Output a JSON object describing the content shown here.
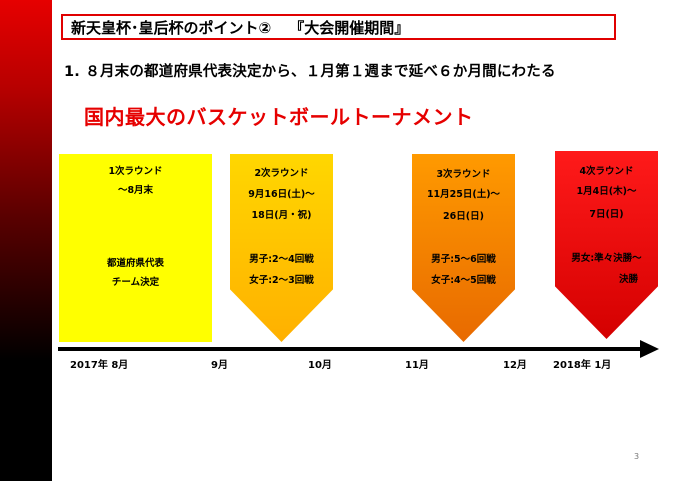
{
  "title": {
    "main": "新天皇杯･皇后杯のポイント②",
    "sub": "『大会開催期間』"
  },
  "point1": "1. ８月末の都道府県代表決定から、１月第１週まで延べ６か月間にわたる",
  "headline": "国内最大のバスケットボールトーナメント",
  "rounds": [
    {
      "name": "1次ラウンド",
      "period": "～8月末",
      "detail1": "都道府県代表",
      "detail2": "チーム決定",
      "color": "#ffff00"
    },
    {
      "name": "2次ラウンド",
      "date1": "9月16日(土)～",
      "date2": "18日(月・祝)",
      "detail1": "男子:2～4回戦",
      "detail2": "女子:2～3回戦",
      "color": "#ffc000"
    },
    {
      "name": "3次ラウンド",
      "date1": "11月25日(土)～",
      "date2": "26日(日)",
      "detail1": "男子:5～6回戦",
      "detail2": "女子:4～5回戦",
      "color": "#f08000"
    },
    {
      "name": "4次ラウンド",
      "date1": "1月4日(木)～",
      "date2": "7日(日)",
      "detail1": "男女:準々決勝～",
      "detail2": "決勝",
      "color": "#ee0000"
    }
  ],
  "timeline": [
    "2017年 8月",
    "9月",
    "10月",
    "11月",
    "12月",
    "2018年 1月"
  ],
  "page_number": "3",
  "colors": {
    "accent": "#e60000",
    "sidebar_top": "#e60000",
    "sidebar_bottom": "#000000"
  }
}
